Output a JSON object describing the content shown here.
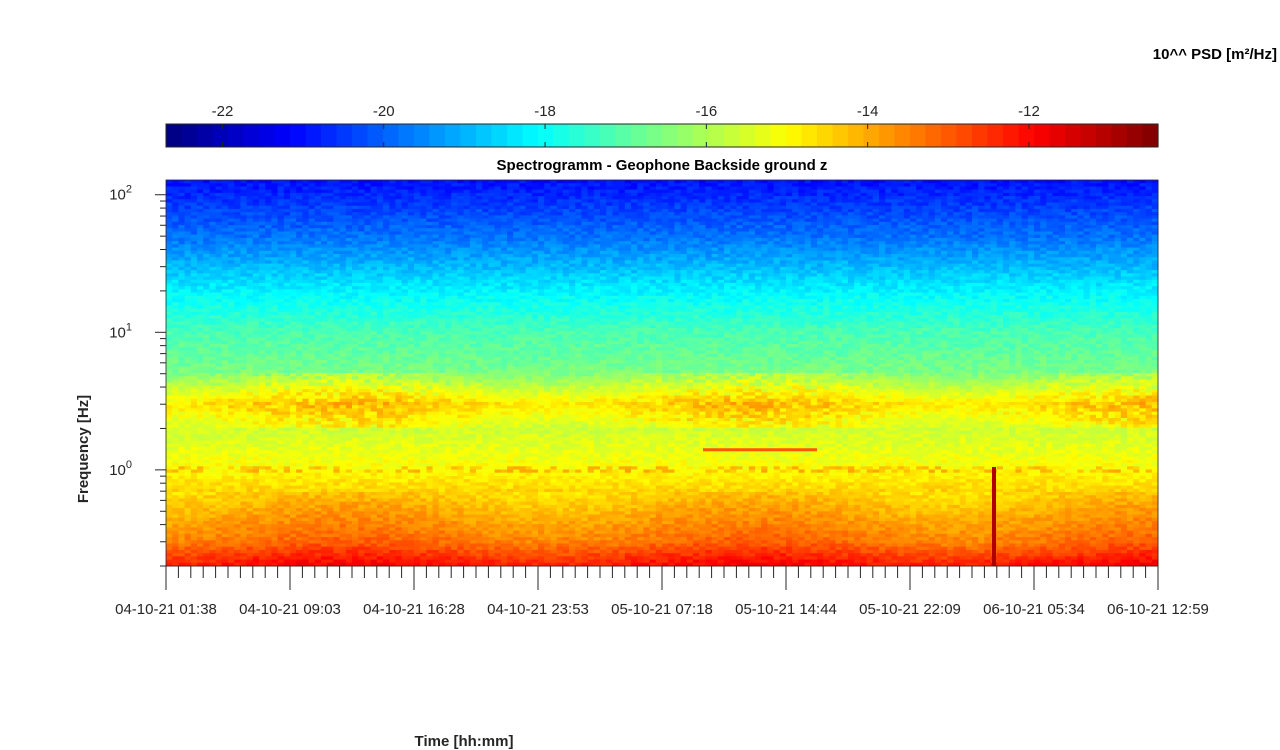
{
  "chart_data": {
    "type": "heatmap",
    "title": "Spectrogramm - Geophone Backside ground z",
    "xlabel": "Time [hh:mm]",
    "ylabel": "Frequency [Hz]",
    "y_scale": "log",
    "ylim": [
      0.2,
      128
    ],
    "y_major_ticks": [
      {
        "value": 1,
        "base": "10",
        "exp": "0"
      },
      {
        "value": 10,
        "base": "10",
        "exp": "1"
      },
      {
        "value": 100,
        "base": "10",
        "exp": "2"
      }
    ],
    "x_tick_labels": [
      "04-10-21  01:38",
      "04-10-21  09:03",
      "04-10-21  16:28",
      "04-10-21  23:53",
      "05-10-21  07:18",
      "05-10-21  14:44",
      "05-10-21  22:09",
      "06-10-21  05:34",
      "06-10-21  12:59"
    ],
    "colorbar": {
      "title": "10^^ PSD [m²/Hz]",
      "colormap": "jet",
      "range": [
        -22.7,
        -10.4
      ],
      "ticks": [
        "-22",
        "-20",
        "-18",
        "-16",
        "-14",
        "-12"
      ],
      "tick_values": [
        -22,
        -20,
        -18,
        -16,
        -14,
        -12
      ]
    },
    "psd_profile_by_frequency": [
      {
        "freq_hz": 0.2,
        "log10_psd": -12.0
      },
      {
        "freq_hz": 0.3,
        "log10_psd": -13.3
      },
      {
        "freq_hz": 0.5,
        "log10_psd": -14.0
      },
      {
        "freq_hz": 0.7,
        "log10_psd": -14.5
      },
      {
        "freq_hz": 1.0,
        "log10_psd": -15.0
      },
      {
        "freq_hz": 2.0,
        "log10_psd": -15.6
      },
      {
        "freq_hz": 3.0,
        "log10_psd": -14.8
      },
      {
        "freq_hz": 5.0,
        "log10_psd": -16.6
      },
      {
        "freq_hz": 10.0,
        "log10_psd": -17.2
      },
      {
        "freq_hz": 20.0,
        "log10_psd": -18.2
      },
      {
        "freq_hz": 50.0,
        "log10_psd": -19.8
      },
      {
        "freq_hz": 128.0,
        "log10_psd": -21.0
      }
    ]
  }
}
